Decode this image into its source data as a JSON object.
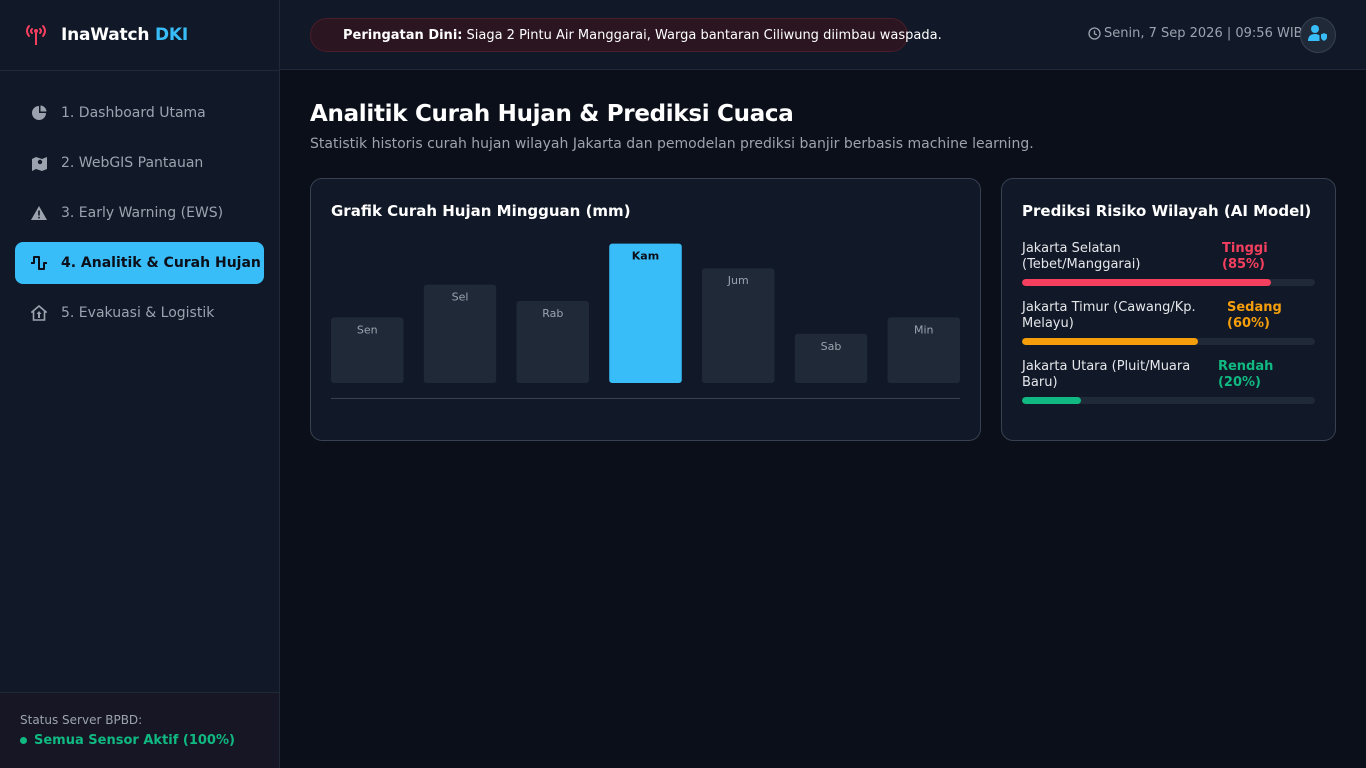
{
  "brand": {
    "name": "InaWatch",
    "accent": "DKI",
    "icon": "signal-tower-icon"
  },
  "nav": {
    "items": [
      {
        "label": "1. Dashboard Utama",
        "icon": "pie-chart-icon",
        "active": false
      },
      {
        "label": "2. WebGIS Pantauan",
        "icon": "map-icon",
        "active": false
      },
      {
        "label": "3. Early Warning (EWS)",
        "icon": "warning-icon",
        "active": false
      },
      {
        "label": "4. Analitik & Curah Hujan",
        "icon": "pulse-icon",
        "active": true
      },
      {
        "label": "5. Evakuasi & Logistik",
        "icon": "shelter-icon",
        "active": false
      }
    ]
  },
  "server": {
    "label": "Status Server BPBD:",
    "status": "Semua Sensor Aktif (100%)"
  },
  "header": {
    "alert_label": "Peringatan Dini:",
    "alert_text": "Siaga 2 Pintu Air Manggarai, Warga bantaran Ciliwung diimbau waspada.",
    "datetime": "Senin, 7 Sep 2026 | 09:56 WIB",
    "avatar_icon": "user-shield-icon"
  },
  "page": {
    "title": "Analitik Curah Hujan & Prediksi Cuaca",
    "subtitle": "Statistik historis curah hujan wilayah Jakarta dan pemodelan prediksi banjir berbasis machine learning."
  },
  "chart_card": {
    "title": "Grafik Curah Hujan Mingguan (mm)"
  },
  "chart_data": {
    "type": "bar",
    "categories": [
      "Sen",
      "Sel",
      "Rab",
      "Kam",
      "Jum",
      "Sab",
      "Min"
    ],
    "values": [
      40,
      60,
      50,
      85,
      70,
      30,
      40
    ],
    "highlight": "Kam",
    "title": "Grafik Curah Hujan Mingguan (mm)",
    "xlabel": "",
    "ylabel": "",
    "ylim": [
      0,
      100
    ],
    "grid": false,
    "colors": {
      "bar": "#1f2937",
      "highlight": "#38bdf8"
    }
  },
  "prediction": {
    "title": "Prediksi Risiko Wilayah (AI Model)",
    "items": [
      {
        "name": "Jakarta Selatan (Tebet/Manggarai)",
        "level": "Tinggi (85%)",
        "percent": 85,
        "color": "#f43f5e"
      },
      {
        "name": "Jakarta Timur (Cawang/Kp. Melayu)",
        "level": "Sedang (60%)",
        "percent": 60,
        "color": "#f59e0b"
      },
      {
        "name": "Jakarta Utara (Pluit/Muara Baru)",
        "level": "Rendah (20%)",
        "percent": 20,
        "color": "#10b981"
      }
    ]
  }
}
